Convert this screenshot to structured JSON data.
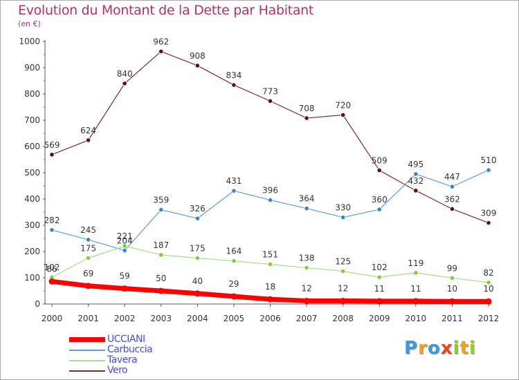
{
  "title": "Evolution du Montant de la Dette par Habitant",
  "subtitle": "(en €)",
  "logo": {
    "text": "Proxiti",
    "colors": [
      "#3b9be0",
      "#f0a020",
      "#3b9be0",
      "#e84a20",
      "#8fcf2a",
      "#f0a020",
      "#8fcf2a"
    ]
  },
  "chart_data": {
    "type": "line",
    "title": "Evolution du Montant de la Dette par Habitant",
    "subtitle": "(en €)",
    "xlabel": "",
    "ylabel": "",
    "x": [
      "2000",
      "2001",
      "2002",
      "2003",
      "2004",
      "2005",
      "2006",
      "2007",
      "2008",
      "2009",
      "2010",
      "2011",
      "2012"
    ],
    "ylim": [
      0,
      1000
    ],
    "yticks": [
      "0",
      "100",
      "200",
      "300",
      "400",
      "500",
      "600",
      "700",
      "800",
      "900",
      "1000"
    ],
    "grid": false,
    "legend_position": "bottom-left",
    "series": [
      {
        "name": "Vero",
        "color": "#7a2a2a",
        "marker": "#5a1010",
        "width": 1.2,
        "values": [
          569,
          624,
          840,
          962,
          908,
          834,
          773,
          708,
          720,
          509,
          432,
          362,
          309
        ],
        "labels": [
          "569",
          "624",
          "840",
          "962",
          "908",
          "834",
          "773",
          "708",
          "720",
          "509",
          "432",
          "362",
          "309"
        ]
      },
      {
        "name": "Carbuccia",
        "color": "#5b9fd4",
        "marker": "#3a84cc",
        "width": 1.2,
        "values": [
          282,
          245,
          204,
          359,
          326,
          431,
          396,
          364,
          330,
          360,
          495,
          447,
          510
        ],
        "labels": [
          "282",
          "245",
          "204",
          "359",
          "326",
          "431",
          "396",
          "364",
          "330",
          "360",
          "495",
          "447",
          "510"
        ]
      },
      {
        "name": "Tavera",
        "color": "#a8dc88",
        "marker": "#7ccf3a",
        "width": 1.2,
        "values": [
          102,
          175,
          221,
          187,
          175,
          164,
          151,
          138,
          125,
          102,
          119,
          99,
          82
        ],
        "labels": [
          "102",
          "175",
          "221",
          "187",
          "175",
          "164",
          "151",
          "138",
          "125",
          "102",
          "119",
          "99",
          "82"
        ]
      },
      {
        "name": "UCCIANI",
        "color": "#ff0000",
        "marker": "#ff0000",
        "width": 7,
        "values": [
          86,
          69,
          59,
          50,
          40,
          29,
          18,
          12,
          12,
          11,
          11,
          10,
          10
        ],
        "labels": [
          "86",
          "69",
          "59",
          "50",
          "40",
          "29",
          "18",
          "12",
          "12",
          "11",
          "11",
          "10",
          "10"
        ]
      }
    ],
    "legend_order": [
      "UCCIANI",
      "Carbuccia",
      "Tavera",
      "Vero"
    ]
  }
}
